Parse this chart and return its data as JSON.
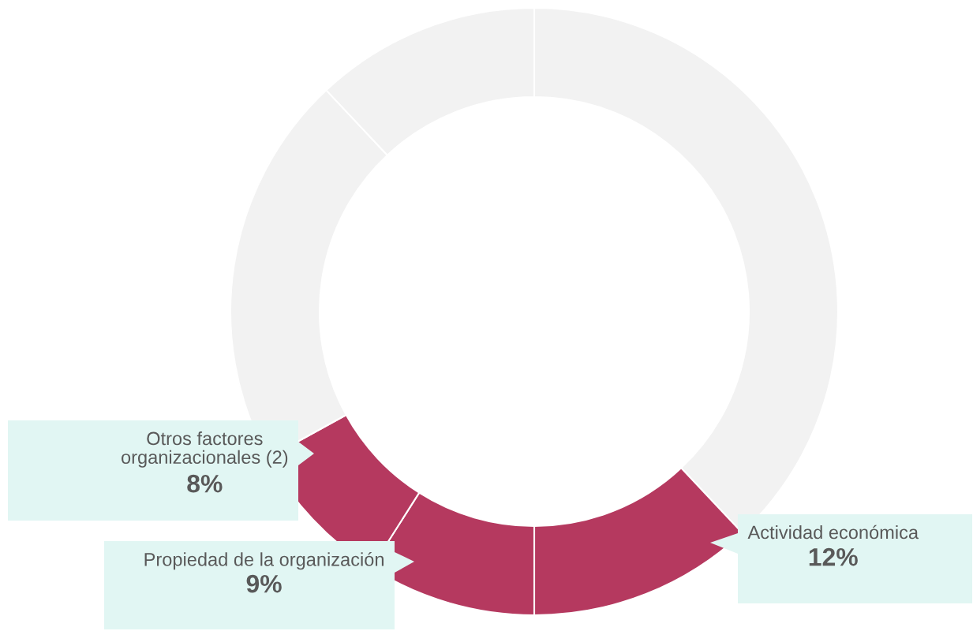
{
  "chart_data": {
    "type": "donut",
    "categories": [
      null,
      "Actividad económica",
      "Propiedad de la organización",
      "Otros factores organizacionales (2)",
      null,
      null
    ],
    "values": [
      38,
      12,
      9,
      8,
      21,
      12
    ],
    "value_labels": [
      null,
      "12%",
      "9%",
      "8%",
      null,
      null
    ],
    "colors": [
      "#f2f2f2",
      "#b5395f",
      "#b5395f",
      "#b5395f",
      "#f2f2f2",
      "#f2f2f2"
    ]
  }
}
